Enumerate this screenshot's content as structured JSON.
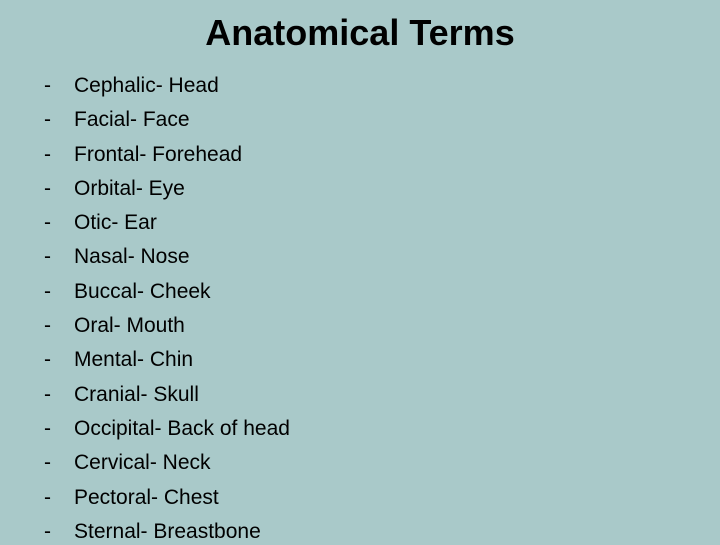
{
  "title": "Anatomical Terms",
  "background_color": "#a9c9c9",
  "text_color": "#000000",
  "title_fontsize": 36,
  "item_fontsize": 21,
  "bullet_char": "-",
  "items": [
    {
      "text": "Cephalic- Head"
    },
    {
      "text": "Facial- Face"
    },
    {
      "text": "Frontal- Forehead"
    },
    {
      "text": "Orbital- Eye"
    },
    {
      "text": "Otic- Ear"
    },
    {
      "text": "Nasal- Nose"
    },
    {
      "text": "Buccal- Cheek"
    },
    {
      "text": "Oral- Mouth"
    },
    {
      "text": "Mental- Chin"
    },
    {
      "text": "Cranial- Skull"
    },
    {
      "text": "Occipital- Back of head"
    },
    {
      "text": "Cervical- Neck"
    },
    {
      "text": "Pectoral- Chest"
    },
    {
      "text": "Sternal- Breastbone"
    }
  ]
}
